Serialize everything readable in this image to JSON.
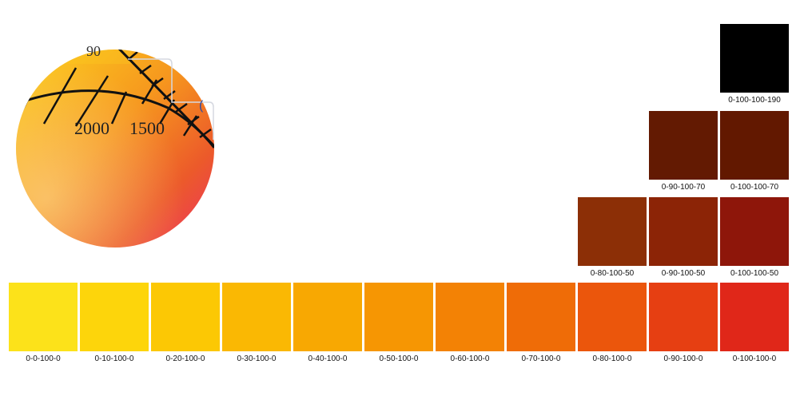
{
  "circle": {
    "gradient": {
      "top_left": "#fcd21f",
      "top_right": "#f6971e",
      "bottom": "#ee3163",
      "right": "#ec5a2a"
    },
    "numbers": [
      "2000",
      "1500"
    ]
  },
  "swatches": [
    {
      "label": "0-0-100-0",
      "color": "#fce21a",
      "row": 0,
      "col": 0
    },
    {
      "label": "0-10-100-0",
      "color": "#fdd50b",
      "row": 0,
      "col": 1
    },
    {
      "label": "0-20-100-0",
      "color": "#fcc804",
      "row": 0,
      "col": 2
    },
    {
      "label": "0-30-100-0",
      "color": "#fab803",
      "row": 0,
      "col": 3
    },
    {
      "label": "0-40-100-0",
      "color": "#f8a802",
      "row": 0,
      "col": 4
    },
    {
      "label": "0-50-100-0",
      "color": "#f69603",
      "row": 0,
      "col": 5
    },
    {
      "label": "0-60-100-0",
      "color": "#f38205",
      "row": 0,
      "col": 6
    },
    {
      "label": "0-70-100-0",
      "color": "#ef6c07",
      "row": 0,
      "col": 7
    },
    {
      "label": "0-80-100-0",
      "color": "#eb560c",
      "row": 0,
      "col": 8
    },
    {
      "label": "0-90-100-0",
      "color": "#e63f12",
      "row": 0,
      "col": 9
    },
    {
      "label": "0-100-100-0",
      "color": "#e02719",
      "row": 0,
      "col": 10
    },
    {
      "label": "0-80-100-50",
      "color": "#8c2f06",
      "row": 1,
      "col": 8
    },
    {
      "label": "0-90-100-50",
      "color": "#8c2406",
      "row": 1,
      "col": 9
    },
    {
      "label": "0-100-100-50",
      "color": "#8e160a",
      "row": 1,
      "col": 10
    },
    {
      "label": "0-90-100-70",
      "color": "#631a02",
      "row": 2,
      "col": 9
    },
    {
      "label": "0-100-100-70",
      "color": "#621800",
      "row": 2,
      "col": 10
    },
    {
      "label": "0-100-100-190",
      "color": "#000000",
      "row": 3,
      "col": 10
    }
  ]
}
